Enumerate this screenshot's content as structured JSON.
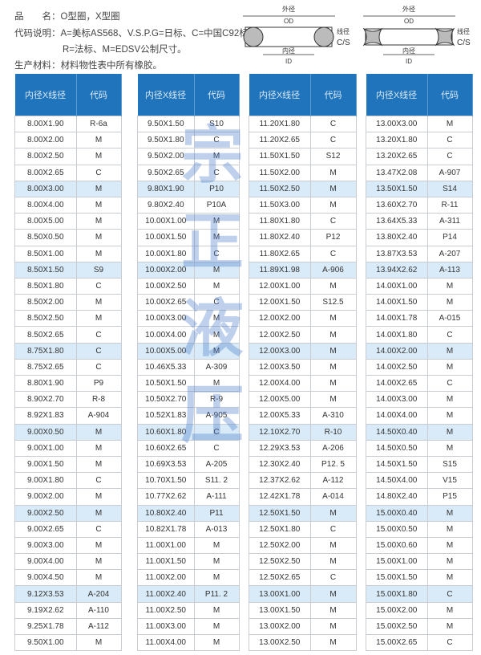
{
  "header": {
    "product_label": "品　　名：",
    "product_value": "O型圈，X型圈",
    "code_label": "代码说明：",
    "code_line1": "A=美标AS568、V.S.P.G=日标、C=中国C92标、",
    "code_line2": "R=法标、M=EDSV公制尺寸。",
    "material_label": "生产材料：",
    "material_value": "材料物性表中所有橡胶。"
  },
  "diagram": {
    "od_cn": "外径",
    "od": "OD",
    "id_cn": "内径",
    "id": "ID",
    "cs_cn": "线径",
    "cs": "C/S"
  },
  "watermark": "宗正液压",
  "colors": {
    "header_bg": "#1f74bb",
    "highlight_row": "#d9ebf8"
  },
  "table_headers": [
    "内径X线径",
    "代码"
  ],
  "tables": [
    [
      [
        "8.00X1.90",
        "R-6a"
      ],
      [
        "8.00X2.00",
        "M"
      ],
      [
        "8.00X2.50",
        "M"
      ],
      [
        "8.00X2.65",
        "C"
      ],
      [
        "8.00X3.00",
        "M"
      ],
      [
        "8.00X4.00",
        "M"
      ],
      [
        "8.00X5.00",
        "M"
      ],
      [
        "8.50X0.50",
        "M"
      ],
      [
        "8.50X1.00",
        "M"
      ],
      [
        "8.50X1.50",
        "S9"
      ],
      [
        "8.50X1.80",
        "C"
      ],
      [
        "8.50X2.00",
        "M"
      ],
      [
        "8.50X2.50",
        "M"
      ],
      [
        "8.50X2.65",
        "C"
      ],
      [
        "8.75X1.80",
        "C"
      ],
      [
        "8.75X2.65",
        "C"
      ],
      [
        "8.80X1.90",
        "P9"
      ],
      [
        "8.90X2.70",
        "R-8"
      ],
      [
        "8.92X1.83",
        "A-904"
      ],
      [
        "9.00X0.50",
        "M"
      ],
      [
        "9.00X1.00",
        "M"
      ],
      [
        "9.00X1.50",
        "M"
      ],
      [
        "9.00X1.80",
        "C"
      ],
      [
        "9.00X2.00",
        "M"
      ],
      [
        "9.00X2.50",
        "M"
      ],
      [
        "9.00X2.65",
        "C"
      ],
      [
        "9.00X3.00",
        "M"
      ],
      [
        "9.00X4.00",
        "M"
      ],
      [
        "9.00X4.50",
        "M"
      ],
      [
        "9.12X3.53",
        "A-204"
      ],
      [
        "9.19X2.62",
        "A-110"
      ],
      [
        "9.25X1.78",
        "A-112"
      ],
      [
        "9.50X1.00",
        "M"
      ]
    ],
    [
      [
        "9.50X1.50",
        "S10"
      ],
      [
        "9.50X1.80",
        "C"
      ],
      [
        "9.50X2.00",
        "M"
      ],
      [
        "9.50X2.65",
        "C"
      ],
      [
        "9.80X1.90",
        "P10"
      ],
      [
        "9.80X2.40",
        "P10A"
      ],
      [
        "10.00X1.00",
        "M"
      ],
      [
        "10.00X1.50",
        "M"
      ],
      [
        "10.00X1.80",
        "C"
      ],
      [
        "10.00X2.00",
        "M"
      ],
      [
        "10.00X2.50",
        "M"
      ],
      [
        "10.00X2.65",
        "C"
      ],
      [
        "10.00X3.00",
        "M"
      ],
      [
        "10.00X4.00",
        "M"
      ],
      [
        "10.00X5.00",
        "M"
      ],
      [
        "10.46X5.33",
        "A-309"
      ],
      [
        "10.50X1.50",
        "M"
      ],
      [
        "10.50X2.70",
        "R-9"
      ],
      [
        "10.52X1.83",
        "A-905"
      ],
      [
        "10.60X1.80",
        "C"
      ],
      [
        "10.60X2.65",
        "C"
      ],
      [
        "10.69X3.53",
        "A-205"
      ],
      [
        "10.70X1.50",
        "S11. 2"
      ],
      [
        "10.77X2.62",
        "A-111"
      ],
      [
        "10.80X2.40",
        "P11"
      ],
      [
        "10.82X1.78",
        "A-013"
      ],
      [
        "11.00X1.00",
        "M"
      ],
      [
        "11.00X1.50",
        "M"
      ],
      [
        "11.00X2.00",
        "M"
      ],
      [
        "11.00X2.40",
        "P11. 2"
      ],
      [
        "11.00X2.50",
        "M"
      ],
      [
        "11.00X3.00",
        "M"
      ],
      [
        "11.00X4.00",
        "M"
      ]
    ],
    [
      [
        "11.20X1.80",
        "C"
      ],
      [
        "11.20X2.65",
        "C"
      ],
      [
        "11.50X1.50",
        "S12"
      ],
      [
        "11.50X2.00",
        "M"
      ],
      [
        "11.50X2.50",
        "M"
      ],
      [
        "11.50X3.00",
        "M"
      ],
      [
        "11.80X1.80",
        "C"
      ],
      [
        "11.80X2.40",
        "P12"
      ],
      [
        "11.80X2.65",
        "C"
      ],
      [
        "11.89X1.98",
        "A-906"
      ],
      [
        "12.00X1.00",
        "M"
      ],
      [
        "12.00X1.50",
        "S12.5"
      ],
      [
        "12.00X2.00",
        "M"
      ],
      [
        "12.00X2.50",
        "M"
      ],
      [
        "12.00X3.00",
        "M"
      ],
      [
        "12.00X3.50",
        "M"
      ],
      [
        "12.00X4.00",
        "M"
      ],
      [
        "12.00X5.00",
        "M"
      ],
      [
        "12.00X5.33",
        "A-310"
      ],
      [
        "12.10X2.70",
        "R-10"
      ],
      [
        "12.29X3.53",
        "A-206"
      ],
      [
        "12.30X2.40",
        "P12. 5"
      ],
      [
        "12.37X2.62",
        "A-112"
      ],
      [
        "12.42X1.78",
        "A-014"
      ],
      [
        "12.50X1.50",
        "M"
      ],
      [
        "12.50X1.80",
        "C"
      ],
      [
        "12.50X2.00",
        "M"
      ],
      [
        "12.50X2.50",
        "M"
      ],
      [
        "12.50X2.65",
        "C"
      ],
      [
        "13.00X1.00",
        "M"
      ],
      [
        "13.00X1.50",
        "M"
      ],
      [
        "13.00X2.00",
        "M"
      ],
      [
        "13.00X2.50",
        "M"
      ]
    ],
    [
      [
        "13.00X3.00",
        "M"
      ],
      [
        "13.20X1.80",
        "C"
      ],
      [
        "13.20X2.65",
        "C"
      ],
      [
        "13.47X2.08",
        "A-907"
      ],
      [
        "13.50X1.50",
        "S14"
      ],
      [
        "13.60X2.70",
        "R-11"
      ],
      [
        "13.64X5.33",
        "A-311"
      ],
      [
        "13.80X2.40",
        "P14"
      ],
      [
        "13.87X3.53",
        "A-207"
      ],
      [
        "13.94X2.62",
        "A-113"
      ],
      [
        "14.00X1.00",
        "M"
      ],
      [
        "14.00X1.50",
        "M"
      ],
      [
        "14.00X1.78",
        "A-015"
      ],
      [
        "14.00X1.80",
        "C"
      ],
      [
        "14.00X2.00",
        "M"
      ],
      [
        "14.00X2.50",
        "M"
      ],
      [
        "14.00X2.65",
        "C"
      ],
      [
        "14.00X3.00",
        "M"
      ],
      [
        "14.00X4.00",
        "M"
      ],
      [
        "14.50X0.40",
        "M"
      ],
      [
        "14.50X0.50",
        "M"
      ],
      [
        "14.50X1.50",
        "S15"
      ],
      [
        "14.50X4.00",
        "V15"
      ],
      [
        "14.80X2.40",
        "P15"
      ],
      [
        "15.00X0.40",
        "M"
      ],
      [
        "15.00X0.50",
        "M"
      ],
      [
        "15.00X0.60",
        "M"
      ],
      [
        "15.00X1.00",
        "M"
      ],
      [
        "15.00X1.50",
        "M"
      ],
      [
        "15.00X1.80",
        "C"
      ],
      [
        "15.00X2.00",
        "M"
      ],
      [
        "15.00X2.50",
        "M"
      ],
      [
        "15.00X2.65",
        "C"
      ]
    ]
  ]
}
